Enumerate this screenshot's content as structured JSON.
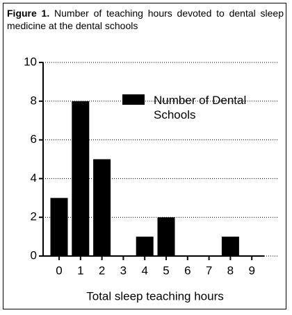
{
  "chart_data": {
    "type": "bar",
    "figure_label": "Figure 1.",
    "title": "Number of teaching hours devoted to dental sleep medicine at the dental schools",
    "x_label": "Total sleep teaching hours",
    "categories": [
      "0",
      "1",
      "2",
      "3",
      "4",
      "5",
      "6",
      "7",
      "8",
      "9"
    ],
    "series": [
      {
        "name": "Number of Dental Schools",
        "color": "#000000",
        "values": [
          3,
          8,
          5,
          0,
          1,
          2,
          0,
          0,
          1,
          0
        ]
      }
    ],
    "ylim": [
      0,
      10
    ],
    "yticks": [
      0,
      2,
      4,
      6,
      8,
      10
    ],
    "grid": true
  }
}
